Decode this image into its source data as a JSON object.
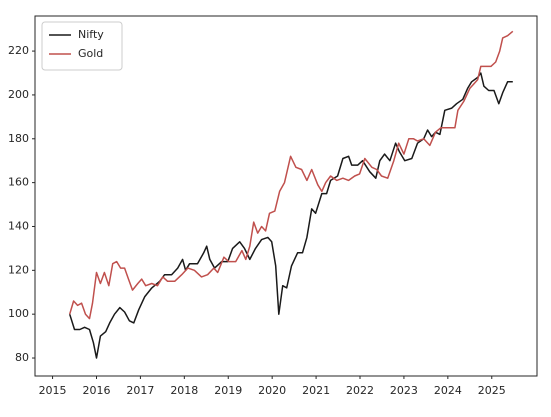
{
  "chart_data": {
    "type": "line",
    "xlim": [
      2014.6,
      2026.03
    ],
    "ylim": [
      71.8,
      236
    ],
    "xticks": [
      2015,
      2016,
      2017,
      2018,
      2019,
      2020,
      2021,
      2022,
      2023,
      2024,
      2025
    ],
    "yticks": [
      80,
      100,
      120,
      140,
      160,
      180,
      200,
      220
    ],
    "legend": "upper left",
    "series": [
      {
        "name": "Nifty",
        "color": "#1a1a1a",
        "x": [
          2015.39,
          2015.5,
          2015.62,
          2015.73,
          2015.84,
          2015.93,
          2016.0,
          2016.09,
          2016.21,
          2016.3,
          2016.41,
          2016.53,
          2016.64,
          2016.75,
          2016.85,
          2016.96,
          2017.1,
          2017.26,
          2017.44,
          2017.55,
          2017.71,
          2017.85,
          2017.96,
          2018.03,
          2018.12,
          2018.3,
          2018.44,
          2018.51,
          2018.58,
          2018.69,
          2018.85,
          2018.99,
          2019.1,
          2019.26,
          2019.37,
          2019.49,
          2019.62,
          2019.76,
          2019.9,
          2019.99,
          2020.08,
          2020.15,
          2020.24,
          2020.33,
          2020.44,
          2020.58,
          2020.69,
          2020.79,
          2020.9,
          2020.99,
          2021.13,
          2021.24,
          2021.33,
          2021.49,
          2021.61,
          2021.74,
          2021.81,
          2021.95,
          2022.06,
          2022.22,
          2022.36,
          2022.45,
          2022.56,
          2022.68,
          2022.81,
          2022.9,
          2023.02,
          2023.18,
          2023.31,
          2023.45,
          2023.54,
          2023.63,
          2023.72,
          2023.82,
          2023.93,
          2024.09,
          2024.2,
          2024.34,
          2024.45,
          2024.54,
          2024.68,
          2024.75,
          2024.82,
          2024.93,
          2025.05,
          2025.16,
          2025.25,
          2025.36,
          2025.48
        ],
        "values": [
          100,
          93,
          93,
          94,
          93,
          87,
          80,
          90,
          92,
          96,
          100,
          103,
          101,
          97,
          96,
          102,
          108,
          112,
          115,
          118,
          118,
          121,
          125,
          120,
          123,
          123,
          128,
          131,
          125,
          121,
          124,
          124,
          130,
          133,
          130,
          125,
          130,
          134,
          135,
          133,
          122,
          100,
          113,
          112,
          122,
          128,
          128,
          135,
          148,
          146,
          155,
          155,
          161,
          163,
          171,
          172,
          168,
          168,
          170,
          165,
          162,
          170,
          173,
          170,
          178,
          174,
          170,
          171,
          178,
          180,
          184,
          181,
          183,
          182,
          193,
          194,
          196,
          198,
          203,
          206,
          208,
          210,
          204,
          202,
          202,
          196,
          201,
          206,
          206
        ]
      },
      {
        "name": "Gold",
        "color": "#c0504d",
        "x": [
          2015.39,
          2015.48,
          2015.57,
          2015.66,
          2015.75,
          2015.84,
          2015.91,
          2016.0,
          2016.09,
          2016.18,
          2016.28,
          2016.37,
          2016.46,
          2016.55,
          2016.64,
          2016.73,
          2016.82,
          2016.94,
          2017.03,
          2017.12,
          2017.26,
          2017.39,
          2017.51,
          2017.62,
          2017.78,
          2017.94,
          2018.08,
          2018.23,
          2018.39,
          2018.53,
          2018.67,
          2018.76,
          2018.9,
          2019.01,
          2019.17,
          2019.31,
          2019.4,
          2019.49,
          2019.58,
          2019.67,
          2019.76,
          2019.85,
          2019.94,
          2020.06,
          2020.17,
          2020.28,
          2020.42,
          2020.54,
          2020.67,
          2020.79,
          2020.9,
          2021.04,
          2021.13,
          2021.22,
          2021.33,
          2021.47,
          2021.61,
          2021.74,
          2021.88,
          2021.99,
          2022.11,
          2022.27,
          2022.38,
          2022.49,
          2022.63,
          2022.77,
          2022.88,
          2023.0,
          2023.11,
          2023.22,
          2023.31,
          2023.45,
          2023.59,
          2023.72,
          2023.84,
          2024.0,
          2024.16,
          2024.23,
          2024.36,
          2024.5,
          2024.59,
          2024.68,
          2024.75,
          2024.87,
          2024.98,
          2025.09,
          2025.18,
          2025.25,
          2025.36,
          2025.48
        ],
        "values": [
          100,
          106,
          104,
          105,
          100,
          98,
          105,
          119,
          114,
          119,
          113,
          123,
          124,
          121,
          121,
          116,
          111,
          114,
          116,
          113,
          114,
          113,
          117,
          115,
          115,
          118,
          121,
          120,
          117,
          118,
          121,
          119,
          126,
          124,
          124,
          129,
          125,
          131,
          142,
          137,
          140,
          138,
          146,
          147,
          156,
          160,
          172,
          167,
          166,
          161,
          166,
          159,
          156,
          160,
          163,
          161,
          162,
          161,
          163,
          164,
          171,
          167,
          166,
          163,
          162,
          170,
          178,
          173,
          180,
          180,
          179,
          180,
          177,
          183,
          185,
          185,
          185,
          193,
          197,
          203,
          205,
          207,
          213,
          213,
          213,
          215,
          220,
          226,
          227,
          229
        ]
      }
    ]
  }
}
